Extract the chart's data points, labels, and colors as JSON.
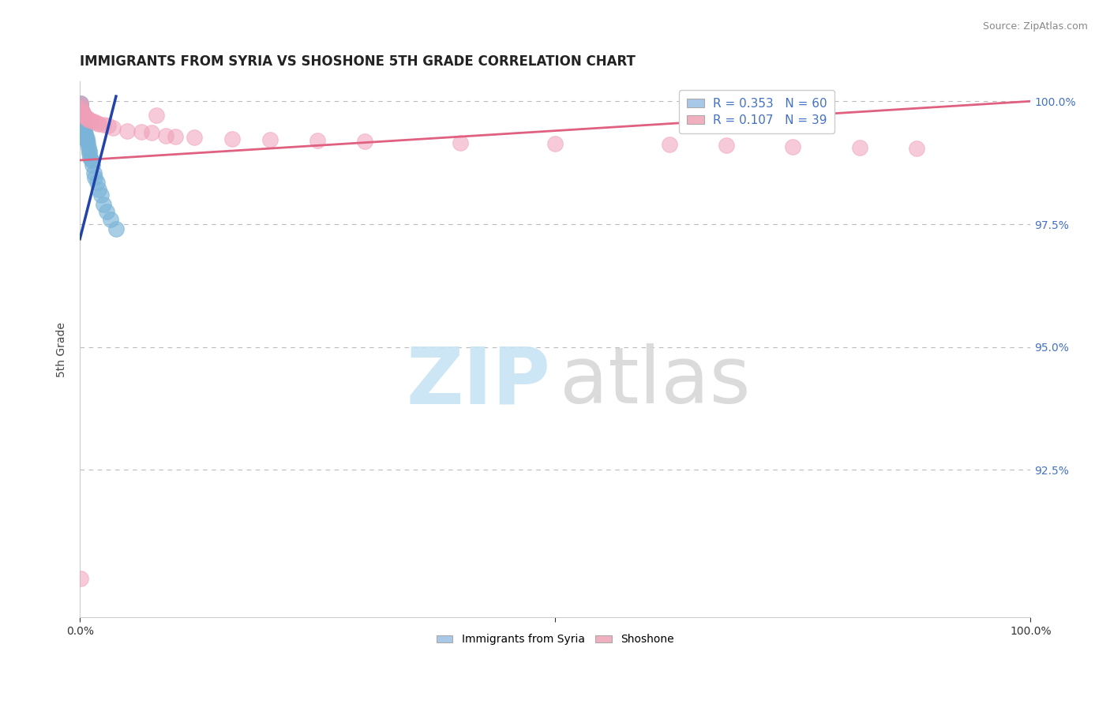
{
  "title": "IMMIGRANTS FROM SYRIA VS SHOSHONE 5TH GRADE CORRELATION CHART",
  "source_text": "Source: ZipAtlas.com",
  "ylabel": "5th Grade",
  "legend_entries": [
    {
      "label_r": "R = 0.353",
      "label_n": "N = 60",
      "color": "#a8c8e8"
    },
    {
      "label_r": "R = 0.107",
      "label_n": "N = 39",
      "color": "#f0b0c0"
    }
  ],
  "bottom_legend": [
    "Immigrants from Syria",
    "Shoshone"
  ],
  "blue_dot_color": "#7ab4d8",
  "pink_dot_color": "#f0a0b8",
  "blue_line_color": "#2244aa",
  "pink_line_color": "#e06080",
  "background_color": "#ffffff",
  "grid_color": "#bbbbbb",
  "right_tick_color": "#4472c4",
  "xlim": [
    0.0,
    1.0
  ],
  "ylim": [
    0.895,
    1.004
  ],
  "yticks_right": [
    0.925,
    0.95,
    0.975,
    1.0
  ],
  "y_tick_labels_right": [
    "92.5%",
    "95.0%",
    "97.5%",
    "100.0%"
  ],
  "watermark_zip_color": "#c8e4f4",
  "watermark_atlas_color": "#d8d8d8",
  "blue_scatter_x": [
    0.0005,
    0.0008,
    0.001,
    0.001,
    0.001,
    0.001,
    0.001,
    0.001,
    0.001,
    0.002,
    0.002,
    0.002,
    0.002,
    0.002,
    0.002,
    0.003,
    0.003,
    0.003,
    0.003,
    0.003,
    0.003,
    0.003,
    0.004,
    0.004,
    0.004,
    0.004,
    0.005,
    0.005,
    0.005,
    0.005,
    0.006,
    0.006,
    0.006,
    0.007,
    0.007,
    0.008,
    0.009,
    0.01,
    0.01,
    0.011,
    0.012,
    0.013,
    0.015,
    0.016,
    0.018,
    0.02,
    0.022,
    0.025,
    0.028,
    0.032,
    0.038,
    0.0005,
    0.0006,
    0.0007,
    0.001,
    0.001,
    0.002,
    0.003,
    0.003,
    0.004
  ],
  "blue_scatter_y": [
    0.9995,
    0.999,
    0.9985,
    0.998,
    0.9975,
    0.997,
    0.9965,
    0.996,
    0.9995,
    0.998,
    0.9975,
    0.997,
    0.9965,
    0.996,
    0.9955,
    0.997,
    0.9965,
    0.996,
    0.9955,
    0.995,
    0.9945,
    0.994,
    0.9955,
    0.995,
    0.9945,
    0.994,
    0.9945,
    0.994,
    0.9935,
    0.993,
    0.9935,
    0.993,
    0.9925,
    0.9925,
    0.992,
    0.9915,
    0.9905,
    0.99,
    0.9895,
    0.9885,
    0.988,
    0.987,
    0.9855,
    0.9845,
    0.9835,
    0.982,
    0.981,
    0.979,
    0.9775,
    0.976,
    0.974,
    0.999,
    0.9988,
    0.9986,
    0.9982,
    0.9978,
    0.9968,
    0.9962,
    0.9958,
    0.9952
  ],
  "pink_scatter_x": [
    0.0005,
    0.001,
    0.001,
    0.002,
    0.002,
    0.003,
    0.003,
    0.004,
    0.005,
    0.006,
    0.007,
    0.008,
    0.01,
    0.012,
    0.015,
    0.018,
    0.02,
    0.025,
    0.03,
    0.035,
    0.05,
    0.065,
    0.075,
    0.08,
    0.09,
    0.1,
    0.12,
    0.16,
    0.2,
    0.25,
    0.3,
    0.4,
    0.5,
    0.62,
    0.68,
    0.75,
    0.82,
    0.88,
    0.001
  ],
  "pink_scatter_y": [
    0.9995,
    0.999,
    0.9985,
    0.998,
    0.9978,
    0.9976,
    0.9974,
    0.9972,
    0.997,
    0.9968,
    0.9966,
    0.9964,
    0.9962,
    0.996,
    0.9958,
    0.9956,
    0.9954,
    0.9952,
    0.995,
    0.9946,
    0.994,
    0.9938,
    0.9936,
    0.9972,
    0.993,
    0.9928,
    0.9926,
    0.9924,
    0.9922,
    0.992,
    0.9918,
    0.9916,
    0.9914,
    0.9912,
    0.991,
    0.9908,
    0.9906,
    0.9904,
    0.903
  ],
  "blue_trendline_x": [
    0.0,
    0.038
  ],
  "blue_trendline_y": [
    0.972,
    1.001
  ],
  "pink_trendline_x": [
    0.0,
    1.0
  ],
  "pink_trendline_y": [
    0.988,
    1.0
  ]
}
